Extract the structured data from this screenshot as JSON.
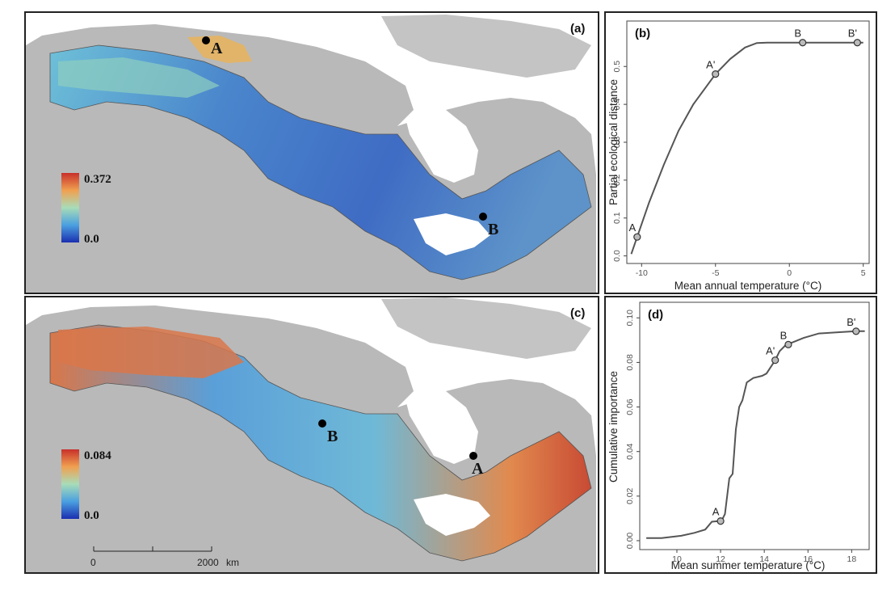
{
  "panel_a": {
    "label": "(a)",
    "colorbar": {
      "max": "0.372",
      "min": "0.0"
    },
    "points": [
      {
        "name": "A"
      },
      {
        "name": "B"
      }
    ]
  },
  "panel_c": {
    "label": "(c)",
    "colorbar": {
      "max": "0.084",
      "min": "0.0"
    },
    "points": [
      {
        "name": "B"
      },
      {
        "name": "A"
      }
    ],
    "scalebar": {
      "start": "0",
      "end": "2000",
      "unit": "km"
    }
  },
  "colors": {
    "land": "#b9b9b9",
    "water": "#ffffff",
    "low": "#2546b5",
    "mid": "#6ec0d8",
    "high": "#c8302a"
  },
  "chart_data": [
    {
      "panel": "(b)",
      "type": "line",
      "xlabel": "Mean annual temperature (°C)",
      "ylabel": "Partial ecological distance",
      "xlim": [
        -11,
        5.4
      ],
      "ylim": [
        -0.02,
        0.62
      ],
      "xticks": [
        -10,
        -5,
        0,
        5
      ],
      "yticks": [
        0.0,
        0.1,
        0.2,
        0.3,
        0.4,
        0.5
      ],
      "series": [
        {
          "x": [
            -10.7,
            -10.3,
            -9.5,
            -8.5,
            -7.5,
            -6.5,
            -5.0,
            -4.0,
            -3.0,
            -2.2,
            -1.5,
            0,
            2,
            4,
            5
          ],
          "y": [
            0.005,
            0.05,
            0.14,
            0.24,
            0.33,
            0.4,
            0.48,
            0.52,
            0.55,
            0.562,
            0.563,
            0.563,
            0.563,
            0.563,
            0.563
          ]
        }
      ],
      "points": [
        {
          "label": "A",
          "x": -10.3,
          "y": 0.05
        },
        {
          "label": "A'",
          "x": -5.0,
          "y": 0.48
        },
        {
          "label": "B",
          "x": 0.9,
          "y": 0.563
        },
        {
          "label": "B'",
          "x": 4.6,
          "y": 0.563
        }
      ]
    },
    {
      "panel": "(d)",
      "type": "line",
      "xlabel": "Mean summer temperature (°C)",
      "ylabel": "Cumulative importance",
      "xlim": [
        8.3,
        18.8
      ],
      "ylim": [
        -0.004,
        0.107
      ],
      "xticks": [
        10,
        12,
        14,
        16,
        18
      ],
      "yticks": [
        0.0,
        0.02,
        0.04,
        0.06,
        0.08,
        0.1
      ],
      "series": [
        {
          "x": [
            8.6,
            9.3,
            10.2,
            10.8,
            11.3,
            11.6,
            11.9,
            12.05,
            12.2,
            12.4,
            12.55,
            12.7,
            12.85,
            13.0,
            13.2,
            13.5,
            13.9,
            14.1,
            14.3,
            14.5,
            14.7,
            15.0,
            15.3,
            15.8,
            16.5,
            17.3,
            18.2,
            18.6
          ],
          "y": [
            0.0012,
            0.0012,
            0.0022,
            0.0035,
            0.005,
            0.0085,
            0.0088,
            0.009,
            0.012,
            0.028,
            0.03,
            0.05,
            0.06,
            0.063,
            0.071,
            0.073,
            0.074,
            0.075,
            0.078,
            0.081,
            0.085,
            0.088,
            0.089,
            0.091,
            0.093,
            0.0935,
            0.094,
            0.094
          ]
        }
      ],
      "points": [
        {
          "label": "A",
          "x": 12.0,
          "y": 0.0088
        },
        {
          "label": "A'",
          "x": 14.5,
          "y": 0.081
        },
        {
          "label": "B",
          "x": 15.1,
          "y": 0.088
        },
        {
          "label": "B'",
          "x": 18.2,
          "y": 0.094
        }
      ]
    }
  ]
}
